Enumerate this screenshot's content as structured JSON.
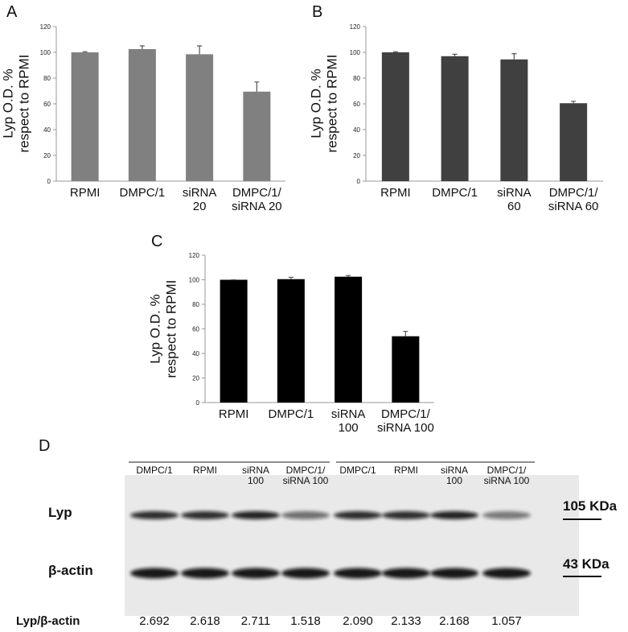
{
  "chart_data": [
    {
      "type": "bar",
      "label": "A",
      "ylabel": "Lyp O.D. %\nrespect to RPMI",
      "categories": [
        "RPMI",
        "DMPC/1",
        "siRNA\n20",
        "DMPC/1/\nsiRNA 20"
      ],
      "values": [
        100,
        102.5,
        98.5,
        69.5
      ],
      "errors": [
        0.5,
        2.5,
        6.5,
        7.5
      ],
      "color": "#808080",
      "ylim": [
        0,
        120
      ],
      "yticks": [
        0,
        20,
        40,
        60,
        80,
        100,
        120
      ]
    },
    {
      "type": "bar",
      "label": "B",
      "ylabel": "Lyp O.D. %\nrespect to RPMI",
      "categories": [
        "RPMI",
        "DMPC/1",
        "siRNA\n60",
        "DMPC/1/\nsiRNA 60"
      ],
      "values": [
        100,
        97,
        94.5,
        60.5
      ],
      "errors": [
        0.5,
        1.5,
        4.5,
        1.5
      ],
      "color": "#404040",
      "ylim": [
        0,
        120
      ],
      "yticks": [
        0,
        20,
        40,
        60,
        80,
        100,
        120
      ]
    },
    {
      "type": "bar",
      "label": "C",
      "ylabel": "Lyp O.D. %\nrespect to RPMI",
      "categories": [
        "RPMI",
        "DMPC/1",
        "siRNA\n100",
        "DMPC/1/\nsiRNA 100"
      ],
      "values": [
        100,
        100.5,
        102.5,
        54
      ],
      "errors": [
        0,
        1.5,
        1,
        4
      ],
      "color": "#000000",
      "ylim": [
        0,
        120
      ],
      "yticks": [
        0,
        20,
        40,
        60,
        80,
        100,
        120
      ]
    }
  ],
  "blot": {
    "label": "D",
    "lanes": [
      "DMPC/1",
      "RPMI",
      "siRNA\n100",
      "DMPC/1/\nsiRNA 100",
      "DMPC/1",
      "RPMI",
      "siRNA\n100",
      "DMPC/1/\nsiRNA 100"
    ],
    "rows": [
      "Lyp",
      "β-actin"
    ],
    "markers": [
      "105 KDa",
      "43 KDa"
    ],
    "ratio_label": "Lyp/β-actin",
    "ratios": [
      "2.692",
      "2.618",
      "2.711",
      "1.518",
      "2.090",
      "2.133",
      "2.168",
      "1.057"
    ]
  }
}
